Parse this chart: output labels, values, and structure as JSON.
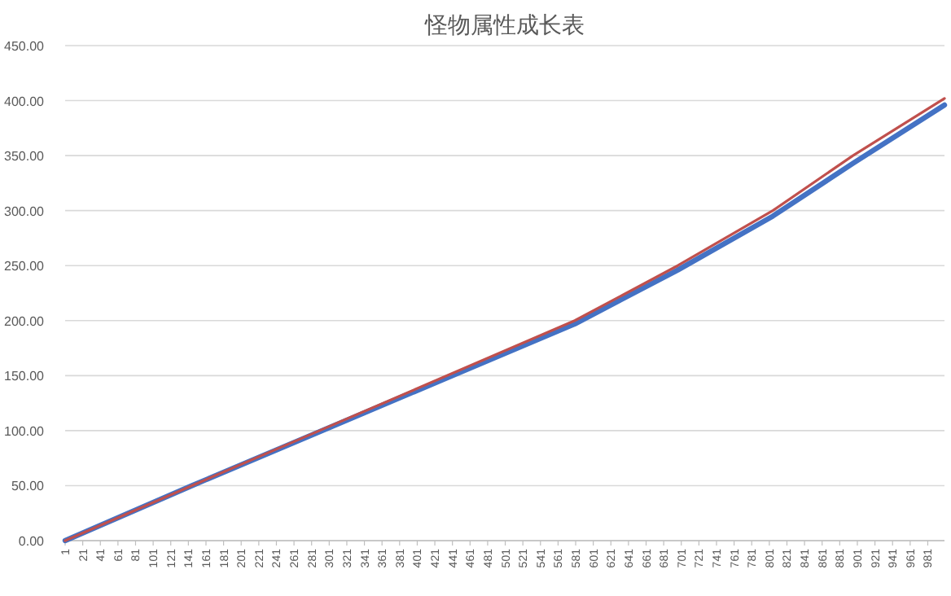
{
  "chart_data": {
    "type": "line",
    "title": "怪物属性成长表",
    "xlim": [
      1,
      1000
    ],
    "xticks": [
      1,
      21,
      41,
      61,
      81,
      101,
      121,
      141,
      161,
      181,
      201,
      221,
      241,
      261,
      281,
      301,
      321,
      341,
      361,
      381,
      401,
      421,
      441,
      461,
      481,
      501,
      521,
      541,
      561,
      581,
      601,
      621,
      641,
      661,
      681,
      701,
      721,
      741,
      761,
      781,
      801,
      821,
      841,
      861,
      881,
      901,
      921,
      941,
      961,
      981
    ],
    "ylim": [
      0,
      450
    ],
    "yticks": [
      {
        "value": 0,
        "label": "0.00"
      },
      {
        "value": 50,
        "label": "50.00"
      },
      {
        "value": 100,
        "label": "100.00"
      },
      {
        "value": 150,
        "label": "150.00"
      },
      {
        "value": 200,
        "label": "200.00"
      },
      {
        "value": 250,
        "label": "250.00"
      },
      {
        "value": 300,
        "label": "300.00"
      },
      {
        "value": 350,
        "label": "350.00"
      },
      {
        "value": 400,
        "label": "400.00"
      },
      {
        "value": 450,
        "label": "450.00"
      }
    ],
    "grid": "y",
    "series": [
      {
        "color": "#4472c4",
        "x": [
          1,
          145,
          290,
          435,
          580,
          697,
          805,
          896,
          1000
        ],
        "values": [
          0,
          50,
          99,
          148,
          197,
          246,
          295,
          343,
          396
        ]
      },
      {
        "color": "#c0504d",
        "x": [
          1,
          145,
          290,
          435,
          580,
          697,
          805,
          896,
          1000
        ],
        "values": [
          0,
          50,
          100,
          150,
          200,
          250,
          300,
          350,
          402
        ]
      }
    ]
  }
}
